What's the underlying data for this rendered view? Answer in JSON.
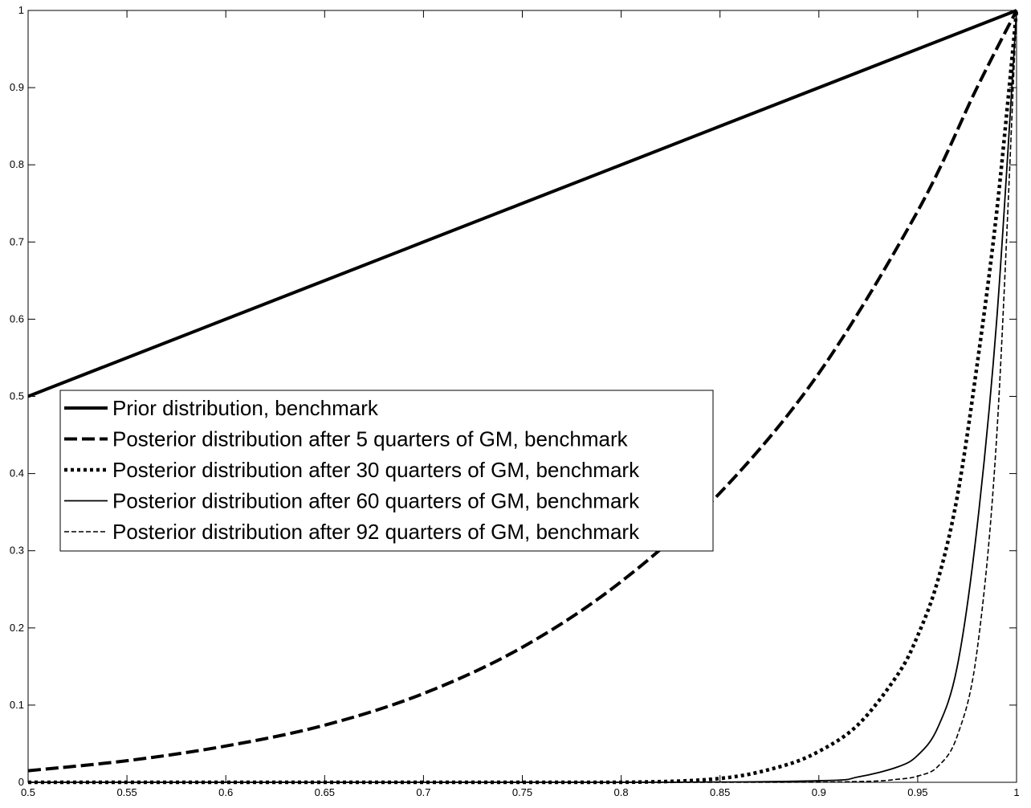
{
  "chart_data": {
    "type": "line",
    "title": "",
    "xlabel": "",
    "ylabel": "",
    "xlim": [
      0.5,
      1.0
    ],
    "ylim": [
      0,
      1.0
    ],
    "grid": false,
    "legend_position": "left-middle",
    "x_ticks": [
      "0.5",
      "0.55",
      "0.6",
      "0.65",
      "0.7",
      "0.75",
      "0.8",
      "0.85",
      "0.9",
      "0.95",
      "1"
    ],
    "y_ticks": [
      "0",
      "0.1",
      "0.2",
      "0.3",
      "0.4",
      "0.5",
      "0.6",
      "0.7",
      "0.8",
      "0.9",
      "1"
    ],
    "series": [
      {
        "name": "Prior distribution, benchmark",
        "style": "solid-thick",
        "x": [
          0.5,
          0.6,
          0.7,
          0.8,
          0.9,
          1.0
        ],
        "y": [
          0.5,
          0.6,
          0.7,
          0.8,
          0.9,
          1.0
        ]
      },
      {
        "name": "Posterior distribution after 5 quarters of GM, benchmark",
        "style": "dashed-thick",
        "x": [
          0.5,
          0.55,
          0.6,
          0.65,
          0.7,
          0.75,
          0.8,
          0.85,
          0.9,
          0.95,
          0.98,
          1.0
        ],
        "y": [
          0.015,
          0.028,
          0.047,
          0.074,
          0.115,
          0.175,
          0.26,
          0.375,
          0.53,
          0.74,
          0.9,
          1.0
        ]
      },
      {
        "name": "Posterior distribution after 30 quarters of GM, benchmark",
        "style": "dotted-thick",
        "x": [
          0.5,
          0.6,
          0.7,
          0.8,
          0.85,
          0.88,
          0.9,
          0.92,
          0.94,
          0.95,
          0.96,
          0.97,
          0.98,
          0.99,
          1.0
        ],
        "y": [
          0.0,
          0.0,
          0.0,
          0.0,
          0.005,
          0.02,
          0.04,
          0.075,
          0.14,
          0.19,
          0.26,
          0.37,
          0.54,
          0.74,
          1.0
        ]
      },
      {
        "name": "Posterior distribution after 60 quarters of GM, benchmark",
        "style": "solid-thin",
        "x": [
          0.5,
          0.8,
          0.9,
          0.92,
          0.94,
          0.95,
          0.96,
          0.97,
          0.98,
          0.99,
          1.0
        ],
        "y": [
          0.0,
          0.0,
          0.002,
          0.007,
          0.02,
          0.035,
          0.07,
          0.15,
          0.33,
          0.6,
          1.0
        ]
      },
      {
        "name": "Posterior distribution after 92 quarters of GM, benchmark",
        "style": "dashed-thin",
        "x": [
          0.5,
          0.85,
          0.92,
          0.94,
          0.95,
          0.96,
          0.97,
          0.98,
          0.99,
          1.0
        ],
        "y": [
          0.0,
          0.0,
          0.001,
          0.004,
          0.008,
          0.02,
          0.06,
          0.17,
          0.45,
          1.0
        ]
      }
    ]
  }
}
